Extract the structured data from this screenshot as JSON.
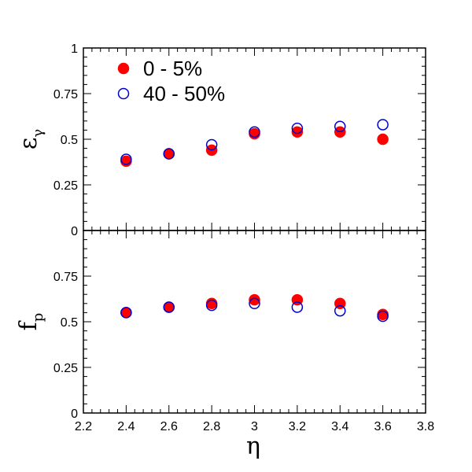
{
  "chart_data": [
    {
      "type": "scatter",
      "panel": "top",
      "ylabel": "ε",
      "ylabel_sub": "γ",
      "ylim": [
        0,
        1
      ],
      "yticks": [
        "0",
        "0.25",
        "0.5",
        "0.75",
        "1"
      ],
      "legend": {
        "placement": "top-left"
      },
      "series": [
        {
          "name": "0 - 5%",
          "marker": "filled-circle",
          "color": "#ff0000",
          "x": [
            2.4,
            2.6,
            2.8,
            3.0,
            3.2,
            3.4,
            3.6
          ],
          "y": [
            0.38,
            0.42,
            0.44,
            0.53,
            0.54,
            0.54,
            0.5
          ]
        },
        {
          "name": "40 - 50%",
          "marker": "open-circle",
          "color": "#0000cc",
          "x": [
            2.4,
            2.6,
            2.8,
            3.0,
            3.2,
            3.4,
            3.6
          ],
          "y": [
            0.39,
            0.42,
            0.47,
            0.54,
            0.56,
            0.57,
            0.58
          ]
        }
      ]
    },
    {
      "type": "scatter",
      "panel": "bottom",
      "xlabel": "η",
      "ylabel": "f",
      "ylabel_sub": "p",
      "xlim": [
        2.2,
        3.8
      ],
      "ylim": [
        0,
        1
      ],
      "xticks": [
        "2.2",
        "2.4",
        "2.6",
        "2.8",
        "3",
        "3.2",
        "3.4",
        "3.6",
        "3.8"
      ],
      "yticks": [
        "0",
        "0.25",
        "0.5",
        "0.75"
      ],
      "series": [
        {
          "name": "0 - 5%",
          "marker": "filled-circle",
          "color": "#ff0000",
          "x": [
            2.4,
            2.6,
            2.8,
            3.0,
            3.2,
            3.4,
            3.6
          ],
          "y": [
            0.55,
            0.58,
            0.6,
            0.62,
            0.62,
            0.6,
            0.54
          ]
        },
        {
          "name": "40 - 50%",
          "marker": "open-circle",
          "color": "#0000cc",
          "x": [
            2.4,
            2.6,
            2.8,
            3.0,
            3.2,
            3.4,
            3.6
          ],
          "y": [
            0.55,
            0.58,
            0.59,
            0.6,
            0.58,
            0.56,
            0.53
          ]
        }
      ]
    }
  ]
}
